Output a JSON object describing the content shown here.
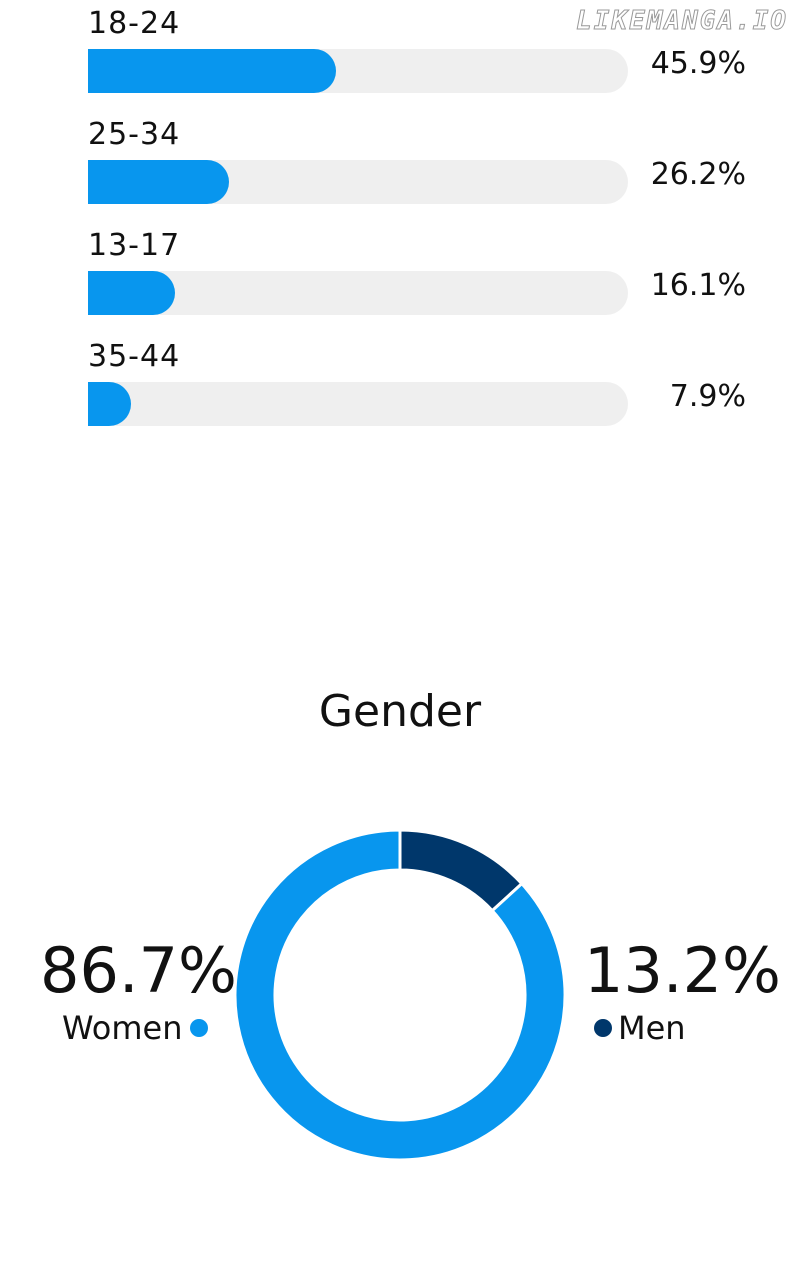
{
  "watermark": "LIKEMANGA.IO",
  "chart_data": [
    {
      "type": "bar",
      "orientation": "horizontal",
      "categories": [
        "18-24",
        "25-34",
        "13-17",
        "35-44"
      ],
      "values": [
        45.9,
        26.2,
        16.1,
        7.9
      ],
      "value_labels": [
        "45.9%",
        "26.2%",
        "16.1%",
        "7.9%"
      ],
      "xlim": [
        0,
        100
      ],
      "colors": {
        "fill": "#0896ee",
        "track": "#efefef"
      }
    },
    {
      "type": "pie",
      "style": "donut",
      "title": "Gender",
      "slices": [
        {
          "name": "Women",
          "value": 86.7,
          "label": "86.7%",
          "color": "#0896ee"
        },
        {
          "name": "Men",
          "value": 13.2,
          "label": "13.2%",
          "color": "#00376b"
        }
      ]
    }
  ]
}
